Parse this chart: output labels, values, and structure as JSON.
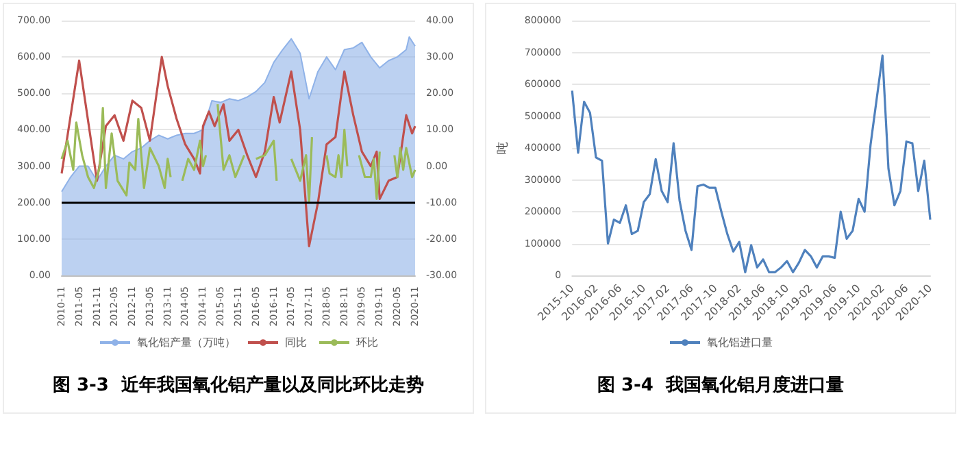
{
  "chart_data": [
    {
      "type": "area",
      "title": "图 3-3  近年我国氧化铝产量以及同比环比走势",
      "legend": "bottom",
      "grid": "y",
      "xlim": [
        "2010-11",
        "2020-11"
      ],
      "xticks": [
        "2010-11",
        "2011-05",
        "2011-11",
        "2012-05",
        "2012-11",
        "2013-05",
        "2013-11",
        "2014-05",
        "2014-11",
        "2015-05",
        "2015-11",
        "2016-05",
        "2016-11",
        "2017-05",
        "2017-11",
        "2018-05",
        "2018-11",
        "2019-05",
        "2019-11",
        "2020-05",
        "2020-11"
      ],
      "ylim": [
        0,
        700
      ],
      "yticks": [
        {
          "value": 0,
          "label": "0.00"
        },
        {
          "value": 100,
          "label": "100.00"
        },
        {
          "value": 200,
          "label": "200.00"
        },
        {
          "value": 300,
          "label": "300.00"
        },
        {
          "value": 400,
          "label": "400.00"
        },
        {
          "value": 500,
          "label": "500.00"
        },
        {
          "value": 600,
          "label": "600.00"
        },
        {
          "value": 700,
          "label": "700.00"
        }
      ],
      "y2lim": [
        -30,
        40
      ],
      "y2ticks": [
        {
          "value": -30,
          "label": "-30.00"
        },
        {
          "value": -20,
          "label": "-20.00"
        },
        {
          "value": -10,
          "label": "-10.00"
        },
        {
          "value": 0,
          "label": "0.00"
        },
        {
          "value": 10,
          "label": "10.00"
        },
        {
          "value": 20,
          "label": "20.00"
        },
        {
          "value": 30,
          "label": "30.00"
        },
        {
          "value": 40,
          "label": "40.00"
        }
      ],
      "ref_lines": [
        {
          "axis": "y",
          "value": 200,
          "color": "#000000"
        }
      ],
      "series": [
        {
          "name": "氧化铝产量（万吨）",
          "type": "area",
          "color": "#8fb2e8",
          "x": [
            "2010-11",
            "2011-02",
            "2011-05",
            "2011-08",
            "2011-11",
            "2012-02",
            "2012-05",
            "2012-08",
            "2012-11",
            "2013-02",
            "2013-05",
            "2013-08",
            "2013-11",
            "2014-02",
            "2014-05",
            "2014-08",
            "2014-11",
            "2015-02",
            "2015-05",
            "2015-08",
            "2015-11",
            "2016-02",
            "2016-05",
            "2016-08",
            "2016-11",
            "2017-02",
            "2017-05",
            "2017-08",
            "2017-11",
            "2018-02",
            "2018-05",
            "2018-08",
            "2018-11",
            "2019-02",
            "2019-05",
            "2019-08",
            "2019-11",
            "2020-02",
            "2020-05",
            "2020-08",
            "2020-09",
            "2020-11"
          ],
          "values": [
            230,
            270,
            300,
            300,
            260,
            300,
            330,
            320,
            340,
            350,
            370,
            385,
            375,
            385,
            390,
            390,
            400,
            480,
            475,
            485,
            480,
            490,
            505,
            530,
            585,
            620,
            650,
            610,
            485,
            560,
            600,
            565,
            620,
            625,
            640,
            600,
            570,
            590,
            600,
            620,
            655,
            630
          ]
        },
        {
          "name": "同比",
          "type": "line",
          "axis": "y2",
          "color": "#c0504d",
          "x": [
            "2010-11",
            "2011-05",
            "2011-11",
            "2012-02",
            "2012-05",
            "2012-08",
            "2012-11",
            "2013-02",
            "2013-05",
            "2013-09",
            "2013-11",
            "2014-02",
            "2014-05",
            "2014-08",
            "2014-10",
            "2014-11",
            "2015-01",
            "2015-03",
            "2015-06",
            "2015-08",
            "2015-11",
            "2016-02",
            "2016-05",
            "2016-08",
            "2016-11",
            "2017-01",
            "2017-05",
            "2017-08",
            "2017-11",
            "2018-02",
            "2018-05",
            "2018-08",
            "2018-11",
            "2019-02",
            "2019-05",
            "2019-08",
            "2019-10",
            "2019-11",
            "2020-02",
            "2020-05",
            "2020-08",
            "2020-10",
            "2020-11"
          ],
          "values": [
            -2,
            29,
            -4,
            11,
            14,
            7,
            18,
            16,
            7,
            30,
            22,
            13,
            6,
            2,
            -2,
            11,
            15,
            11,
            17,
            7,
            10,
            3,
            -3,
            4,
            19,
            12,
            26,
            10,
            -22,
            -10,
            6,
            8,
            26,
            14,
            4,
            0,
            4,
            -9,
            -4,
            -3,
            14,
            9,
            11
          ]
        },
        {
          "name": "环比",
          "type": "line",
          "axis": "y2",
          "color": "#9bbb59",
          "x": [
            "2010-11",
            "2011-01",
            "2011-03",
            "2011-04",
            "2011-06",
            "2011-08",
            "2011-10",
            "2011-12",
            "2012-01",
            "2012-02",
            "2012-04",
            "2012-06",
            "2012-09",
            "2012-10",
            "2012-12",
            "2013-01",
            "2013-03",
            "2013-05",
            "2013-08",
            "2013-10",
            "2013-11",
            "2013-12",
            "2014-02",
            "2014-04",
            "2014-06",
            "2014-08",
            "2014-10",
            "2014-11",
            "2014-12",
            "2015-02",
            "2015-04",
            "2015-06",
            "2015-08",
            "2015-10",
            "2015-11",
            "2016-01",
            "2016-03",
            "2016-05",
            "2016-08",
            "2016-11",
            "2016-12",
            "2017-02",
            "2017-05",
            "2017-08",
            "2017-10",
            "2017-11",
            "2017-12",
            "2018-02",
            "2018-05",
            "2018-06",
            "2018-08",
            "2018-09",
            "2018-10",
            "2018-11",
            "2018-12",
            "2019-02",
            "2019-04",
            "2019-06",
            "2019-08",
            "2019-09",
            "2019-10",
            "2019-11",
            "2020-01",
            "2020-04",
            "2020-05",
            "2020-06",
            "2020-07",
            "2020-08",
            "2020-10",
            "2020-11"
          ],
          "values": [
            2,
            7,
            -1,
            12,
            3,
            -3,
            -6,
            0,
            16,
            -6,
            9,
            -4,
            -8,
            1,
            -1,
            13,
            -6,
            5,
            0,
            -6,
            2,
            -3,
            null,
            -4,
            2,
            -1,
            7,
            0,
            3,
            null,
            17,
            -1,
            3,
            -3,
            -1,
            3,
            null,
            2,
            3,
            7,
            -4,
            null,
            2,
            -4,
            3,
            -10,
            8,
            null,
            3,
            -2,
            -3,
            3,
            -3,
            10,
            0,
            null,
            3,
            -3,
            -3,
            2,
            -9,
            4,
            null,
            3,
            -3,
            5,
            -1,
            5,
            -3,
            -1
          ]
        }
      ]
    },
    {
      "type": "line",
      "title": "图 3-4  我国氧化铝月度进口量",
      "ylabel": "吨",
      "legend": "bottom",
      "grid": "y",
      "categories": [
        "2015-10",
        null,
        null,
        null,
        "2016-02",
        null,
        null,
        null,
        "2016-06",
        null,
        null,
        null,
        "2016-10",
        null,
        null,
        null,
        "2017-02",
        null,
        null,
        null,
        "2017-06",
        null,
        null,
        null,
        "2017-10",
        null,
        null,
        null,
        "2018-02",
        null,
        null,
        null,
        "2018-06",
        null,
        null,
        null,
        "2018-10",
        null,
        null,
        null,
        "2019-02",
        null,
        null,
        null,
        "2019-06",
        null,
        null,
        null,
        "2019-10",
        null,
        null,
        null,
        "2020-02",
        null,
        null,
        null,
        "2020-06",
        null,
        null,
        null,
        "2020-10"
      ],
      "ylim": [
        0,
        800000
      ],
      "yticks": [
        0,
        100000,
        200000,
        300000,
        400000,
        500000,
        600000,
        700000,
        800000
      ],
      "series": [
        {
          "name": "氧化铝进口量",
          "color": "#4f81bd",
          "values": [
            580000,
            385000,
            545000,
            510000,
            370000,
            360000,
            100000,
            175000,
            165000,
            220000,
            130000,
            140000,
            230000,
            255000,
            365000,
            265000,
            230000,
            415000,
            235000,
            140000,
            80000,
            280000,
            285000,
            275000,
            275000,
            200000,
            130000,
            75000,
            105000,
            10000,
            95000,
            25000,
            50000,
            10000,
            10000,
            25000,
            45000,
            10000,
            40000,
            80000,
            60000,
            25000,
            60000,
            60000,
            55000,
            200000,
            115000,
            140000,
            240000,
            200000,
            410000,
            550000,
            690000,
            335000,
            220000,
            265000,
            420000,
            415000,
            265000,
            360000,
            175000
          ]
        }
      ]
    }
  ]
}
